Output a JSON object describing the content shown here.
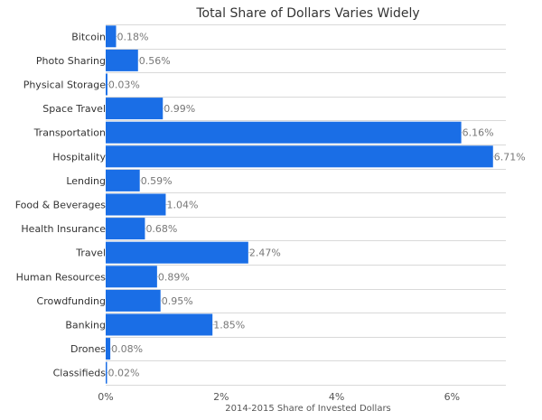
{
  "chart_data": {
    "type": "bar",
    "orientation": "horizontal",
    "title": "Total Share of Dollars Varies Widely",
    "xlabel": "2014-2015 Share of Invested Dollars",
    "ylabel": "",
    "xlim": [
      0,
      7
    ],
    "x_ticks": [
      0,
      2,
      4,
      6
    ],
    "x_tick_labels": [
      "0%",
      "2%",
      "4%",
      "6%"
    ],
    "grid": true,
    "legend": "none",
    "bar_color": "#1a6ee6",
    "categories": [
      "Bitcoin",
      "Photo Sharing",
      "Physical Storage",
      "Space Travel",
      "Transportation",
      "Hospitality",
      "Lending",
      "Food & Beverages",
      "Health Insurance",
      "Travel",
      "Human Resources",
      "Crowdfunding",
      "Banking",
      "Drones",
      "Classifieds"
    ],
    "values": [
      0.18,
      0.56,
      0.03,
      0.99,
      6.16,
      6.71,
      0.59,
      1.04,
      0.68,
      2.47,
      0.89,
      0.95,
      1.85,
      0.08,
      0.02
    ],
    "value_labels": [
      "0.18%",
      "0.56%",
      "0.03%",
      "0.99%",
      "6.16%",
      "6.71%",
      "0.59%",
      "1.04%",
      "0.68%",
      "2.47%",
      "0.89%",
      "0.95%",
      "1.85%",
      "0.08%",
      "0.02%"
    ]
  }
}
